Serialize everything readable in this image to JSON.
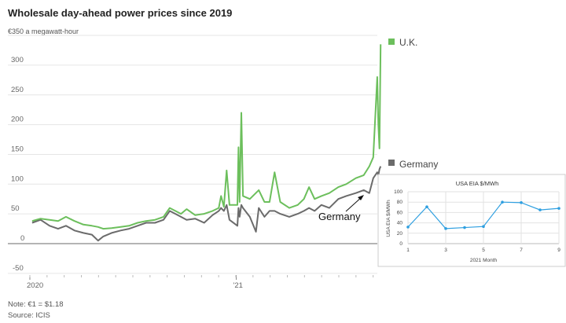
{
  "chart_data": [
    {
      "type": "line",
      "title": "Wholesale day-ahead power prices since 2019",
      "subtitle": "€350 a megawatt-hour",
      "ylim": [
        -50,
        350
      ],
      "yticks": [
        "300",
        "250",
        "200",
        "150",
        "100",
        "50",
        "0",
        "-50"
      ],
      "yticks_values": [
        300,
        250,
        200,
        150,
        100,
        50,
        0,
        -50
      ],
      "xticks": [
        "2020",
        "'21"
      ],
      "xticks_dates": [
        "2020-01-01",
        "2021-01-01"
      ],
      "grid": true,
      "legend_placement": "right",
      "annotation": "Germany",
      "series": [
        {
          "name": "U.K.",
          "color": "#6cbf5c",
          "x": [
            "2020-01-05",
            "2020-01-20",
            "2020-02-05",
            "2020-02-20",
            "2020-03-05",
            "2020-03-20",
            "2020-04-05",
            "2020-04-20",
            "2020-05-01",
            "2020-05-10",
            "2020-05-25",
            "2020-06-10",
            "2020-06-25",
            "2020-07-10",
            "2020-07-25",
            "2020-08-10",
            "2020-08-25",
            "2020-09-05",
            "2020-09-15",
            "2020-09-25",
            "2020-10-05",
            "2020-10-20",
            "2020-11-05",
            "2020-11-20",
            "2020-12-01",
            "2020-12-05",
            "2020-12-10",
            "2020-12-15",
            "2020-12-20",
            "2021-01-03",
            "2021-01-05",
            "2021-01-07",
            "2021-01-10",
            "2021-01-13",
            "2021-01-25",
            "2021-02-10",
            "2021-02-20",
            "2021-03-01",
            "2021-03-10",
            "2021-03-20",
            "2021-04-05",
            "2021-04-20",
            "2021-05-01",
            "2021-05-10",
            "2021-05-20",
            "2021-06-01",
            "2021-06-15",
            "2021-07-01",
            "2021-07-15",
            "2021-08-01",
            "2021-08-15",
            "2021-08-25",
            "2021-09-01",
            "2021-09-08",
            "2021-09-10",
            "2021-09-12",
            "2021-09-14"
          ],
          "y": [
            38,
            42,
            40,
            38,
            45,
            38,
            32,
            30,
            28,
            25,
            26,
            28,
            30,
            35,
            38,
            40,
            45,
            60,
            55,
            50,
            58,
            48,
            50,
            55,
            60,
            80,
            62,
            123,
            65,
            65,
            162,
            70,
            220,
            80,
            75,
            90,
            70,
            70,
            120,
            70,
            60,
            65,
            75,
            95,
            75,
            80,
            85,
            95,
            100,
            110,
            115,
            130,
            145,
            280,
            200,
            160,
            335
          ]
        },
        {
          "name": "Germany",
          "color": "#6b6b6b",
          "x": [
            "2020-01-05",
            "2020-01-20",
            "2020-02-05",
            "2020-02-20",
            "2020-03-05",
            "2020-03-20",
            "2020-04-05",
            "2020-04-20",
            "2020-05-01",
            "2020-05-10",
            "2020-05-25",
            "2020-06-10",
            "2020-06-25",
            "2020-07-10",
            "2020-07-25",
            "2020-08-10",
            "2020-08-25",
            "2020-09-05",
            "2020-09-15",
            "2020-09-25",
            "2020-10-05",
            "2020-10-20",
            "2020-11-05",
            "2020-11-20",
            "2020-12-01",
            "2020-12-05",
            "2020-12-10",
            "2020-12-15",
            "2020-12-20",
            "2021-01-03",
            "2021-01-05",
            "2021-01-07",
            "2021-01-10",
            "2021-01-13",
            "2021-01-25",
            "2021-02-05",
            "2021-02-10",
            "2021-02-20",
            "2021-03-01",
            "2021-03-10",
            "2021-03-20",
            "2021-04-05",
            "2021-04-20",
            "2021-05-01",
            "2021-05-10",
            "2021-05-20",
            "2021-06-01",
            "2021-06-15",
            "2021-07-01",
            "2021-07-15",
            "2021-08-01",
            "2021-08-15",
            "2021-08-25",
            "2021-09-01",
            "2021-09-08",
            "2021-09-10",
            "2021-09-12",
            "2021-09-14"
          ],
          "y": [
            35,
            40,
            30,
            25,
            30,
            22,
            18,
            15,
            5,
            12,
            18,
            22,
            25,
            30,
            35,
            35,
            40,
            55,
            50,
            45,
            40,
            42,
            35,
            48,
            55,
            60,
            55,
            65,
            40,
            30,
            60,
            45,
            65,
            60,
            45,
            20,
            60,
            45,
            55,
            55,
            50,
            45,
            50,
            55,
            60,
            55,
            65,
            60,
            75,
            80,
            85,
            90,
            85,
            110,
            120,
            115,
            125,
            130
          ]
        }
      ]
    },
    {
      "type": "line",
      "title": "USA EIA $/MWh",
      "xlabel": "2021 Month",
      "ylabel": "USA EIA $/MWh",
      "ylim": [
        0,
        100
      ],
      "xlim": [
        1,
        9
      ],
      "yticks": [
        "0",
        "20",
        "40",
        "60",
        "80",
        "100"
      ],
      "xticks": [
        "1",
        "3",
        "5",
        "7",
        "9"
      ],
      "grid": true,
      "color": "#2e9fe0",
      "x": [
        1,
        2,
        3,
        4,
        5,
        6,
        7,
        8,
        9
      ],
      "y": [
        32,
        71,
        29,
        31,
        33,
        80,
        79,
        65,
        68
      ]
    }
  ],
  "footer": {
    "note": "Note: €1 = $1.18",
    "source": "Source: ICIS"
  }
}
